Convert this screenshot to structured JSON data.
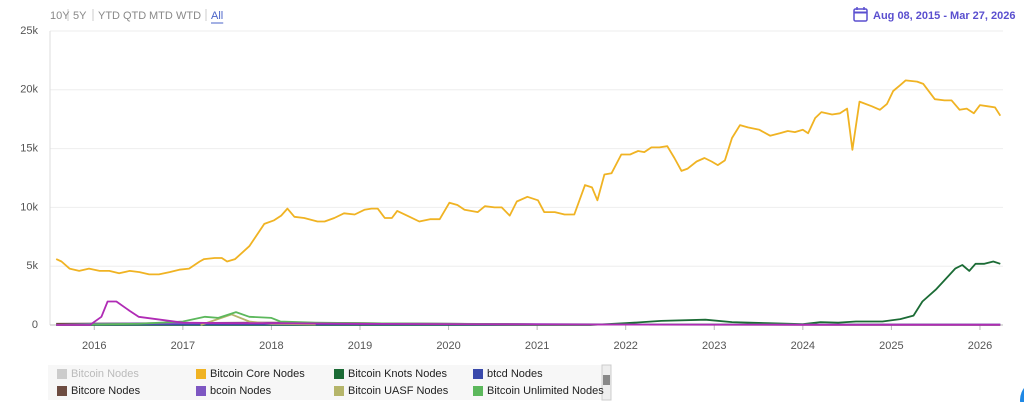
{
  "controls": {
    "range_buttons": [
      "10Y",
      "5Y",
      "YTD",
      "QTD",
      "MTD",
      "WTD",
      "All"
    ],
    "active": "All",
    "date_range": "Aug 08, 2015 - Mar 27, 2026"
  },
  "chart_data": {
    "type": "line",
    "xlim": [
      2015.5,
      2026.26
    ],
    "xticks": [
      2016,
      2017,
      2018,
      2019,
      2020,
      2021,
      2022,
      2023,
      2024,
      2025,
      2026
    ],
    "ylim": [
      0,
      25000
    ],
    "yticks": [
      0,
      {
        "value": 5000,
        "label": "5k"
      },
      {
        "value": 10000,
        "label": "10k"
      },
      {
        "value": 15000,
        "label": "15k"
      },
      {
        "value": 20000,
        "label": "20k"
      },
      {
        "value": 25000,
        "label": "25k"
      }
    ],
    "grid": true,
    "legend": "bottom-left",
    "series": [
      {
        "name": "Bitcoin Nodes",
        "color": "#cccccc",
        "hidden": true
      },
      {
        "name": "Bitcoin Core Nodes",
        "color": "#f0b323",
        "x": [
          2015.57,
          2015.63,
          2015.72,
          2015.83,
          2015.94,
          2016.06,
          2016.17,
          2016.28,
          2016.4,
          2016.51,
          2016.62,
          2016.73,
          2016.85,
          2016.96,
          2017.07,
          2017.19,
          2017.24,
          2017.36,
          2017.44,
          2017.5,
          2017.59,
          2017.75,
          2017.92,
          2018.03,
          2018.11,
          2018.18,
          2018.26,
          2018.37,
          2018.52,
          2018.6,
          2018.71,
          2018.82,
          2018.94,
          2019.05,
          2019.13,
          2019.2,
          2019.28,
          2019.36,
          2019.42,
          2019.56,
          2019.67,
          2019.79,
          2019.9,
          2020.01,
          2020.1,
          2020.18,
          2020.33,
          2020.41,
          2020.52,
          2020.6,
          2020.69,
          2020.77,
          2020.89,
          2021.01,
          2021.08,
          2021.2,
          2021.31,
          2021.42,
          2021.54,
          2021.62,
          2021.68,
          2021.76,
          2021.84,
          2021.95,
          2022.05,
          2022.14,
          2022.21,
          2022.29,
          2022.38,
          2022.47,
          2022.55,
          2022.63,
          2022.7,
          2022.8,
          2022.89,
          2022.97,
          2023.04,
          2023.12,
          2023.2,
          2023.29,
          2023.38,
          2023.51,
          2023.63,
          2023.74,
          2023.83,
          2023.91,
          2024.0,
          2024.06,
          2024.14,
          2024.21,
          2024.33,
          2024.42,
          2024.5,
          2024.56,
          2024.64,
          2024.78,
          2024.87,
          2024.95,
          2025.02,
          2025.1,
          2025.16,
          2025.29,
          2025.36,
          2025.49,
          2025.6,
          2025.68,
          2025.77,
          2025.85,
          2025.93,
          2026.0,
          2026.09,
          2026.17,
          2026.23
        ],
        "values": [
          5600,
          5400,
          4800,
          4600,
          4800,
          4600,
          4600,
          4400,
          4600,
          4500,
          4300,
          4300,
          4500,
          4700,
          4800,
          5400,
          5600,
          5700,
          5700,
          5400,
          5600,
          6700,
          8600,
          8900,
          9300,
          9900,
          9200,
          9100,
          8800,
          8800,
          9100,
          9500,
          9400,
          9800,
          9900,
          9900,
          9100,
          9100,
          9700,
          9200,
          8800,
          9000,
          9000,
          10400,
          10200,
          9800,
          9600,
          10100,
          10000,
          10000,
          9300,
          10500,
          10900,
          10600,
          9600,
          9600,
          9400,
          9400,
          11900,
          11700,
          10600,
          12800,
          12900,
          14500,
          14500,
          14800,
          14700,
          15100,
          15100,
          15200,
          14200,
          13100,
          13300,
          13900,
          14200,
          13900,
          13600,
          14000,
          15900,
          17000,
          16800,
          16600,
          16100,
          16300,
          16500,
          16400,
          16600,
          16300,
          17600,
          18100,
          17900,
          18000,
          18400,
          14900,
          19000,
          18600,
          18300,
          18800,
          19900,
          20400,
          20800,
          20700,
          20500,
          19200,
          19100,
          19100,
          18300,
          18400,
          18000,
          18700,
          18600,
          18500,
          17800
        ]
      },
      {
        "name": "Bitcoin Knots Nodes",
        "color": "#1b6b35",
        "x": [
          2015.57,
          2021.6,
          2022.0,
          2022.4,
          2022.9,
          2023.2,
          2023.6,
          2024.0,
          2024.2,
          2024.4,
          2024.6,
          2024.9,
          2025.1,
          2025.25,
          2025.35,
          2025.5,
          2025.6,
          2025.72,
          2025.8,
          2025.88,
          2025.95,
          2026.05,
          2026.15,
          2026.23
        ],
        "values": [
          0,
          0,
          150,
          350,
          450,
          250,
          150,
          80,
          250,
          200,
          300,
          300,
          500,
          800,
          2000,
          3000,
          3800,
          4800,
          5100,
          4600,
          5200,
          5200,
          5400,
          5200
        ]
      },
      {
        "name": "btcd Nodes",
        "color": "#3949ab",
        "x": [
          2015.57,
          2018.0,
          2021.0,
          2026.23
        ],
        "values": [
          50,
          60,
          40,
          30
        ]
      },
      {
        "name": "Bitcore Nodes",
        "color": "#6d4c41",
        "x": [
          2015.57,
          2018.0,
          2019.0,
          2021.0,
          2026.23
        ],
        "values": [
          100,
          200,
          150,
          50,
          20
        ]
      },
      {
        "name": "bcoin Nodes",
        "color": "#7e57c2",
        "x": [
          2015.57,
          2016.0,
          2017.0,
          2018.5,
          2020.0,
          2022.0,
          2026.23
        ],
        "values": [
          0,
          100,
          150,
          150,
          100,
          50,
          30
        ]
      },
      {
        "name": "Bitcoin UASF Nodes",
        "color": "#b5b56a",
        "x": [
          2017.2,
          2017.55,
          2017.75,
          2018.0,
          2018.5
        ],
        "values": [
          0,
          900,
          300,
          100,
          50
        ]
      },
      {
        "name": "Bitcoin Unlimited Nodes",
        "color": "#5cb85c",
        "x": [
          2015.57,
          2016.0,
          2016.5,
          2017.0,
          2017.25,
          2017.4,
          2017.6,
          2017.75,
          2018.0,
          2018.1,
          2018.5,
          2019.0,
          2020.0,
          2021.0,
          2022.0,
          2026.23
        ],
        "values": [
          0,
          50,
          100,
          300,
          700,
          600,
          1100,
          700,
          600,
          300,
          200,
          150,
          100,
          50,
          30,
          10
        ]
      },
      {
        "color": "#b02bb5",
        "x": [
          2015.57,
          2015.95,
          2016.08,
          2016.15,
          2016.25,
          2016.4,
          2016.5,
          2016.8,
          2017.0,
          2017.5,
          2018.0,
          2019.0,
          2020.0,
          2021.0,
          2022.0,
          2024.0,
          2026.23
        ],
        "values": [
          0,
          0,
          700,
          2000,
          2000,
          1200,
          700,
          400,
          200,
          150,
          150,
          100,
          80,
          50,
          30,
          20,
          20
        ]
      }
    ]
  }
}
